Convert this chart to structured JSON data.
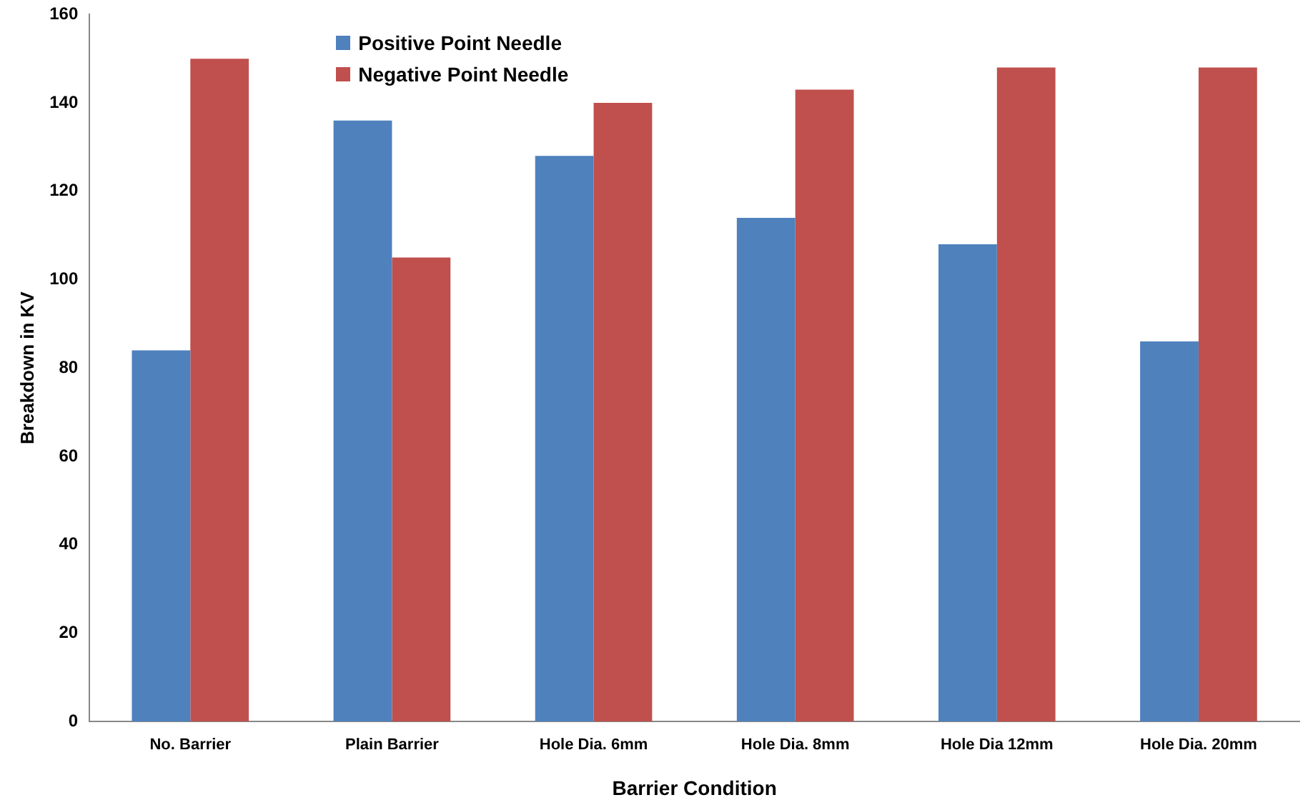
{
  "chart_data": {
    "type": "bar",
    "xlabel": "Barrier Condition",
    "ylabel": "Breakdown in KV",
    "categories": [
      "No. Barrier",
      "Plain Barrier",
      "Hole Dia. 6mm",
      "Hole Dia. 8mm",
      "Hole Dia 12mm",
      "Hole Dia. 20mm"
    ],
    "series": [
      {
        "name": "Positive Point Needle",
        "color": "#4f81bd",
        "values": [
          84,
          136,
          128,
          114,
          108,
          86
        ]
      },
      {
        "name": "Negative Point Needle",
        "color": "#c0504d",
        "values": [
          150,
          105,
          140,
          143,
          148,
          148
        ]
      }
    ],
    "ylim": [
      0,
      160
    ],
    "yticks": [
      0,
      20,
      40,
      60,
      80,
      100,
      120,
      140,
      160
    ],
    "grid": false,
    "legend": "top left"
  }
}
